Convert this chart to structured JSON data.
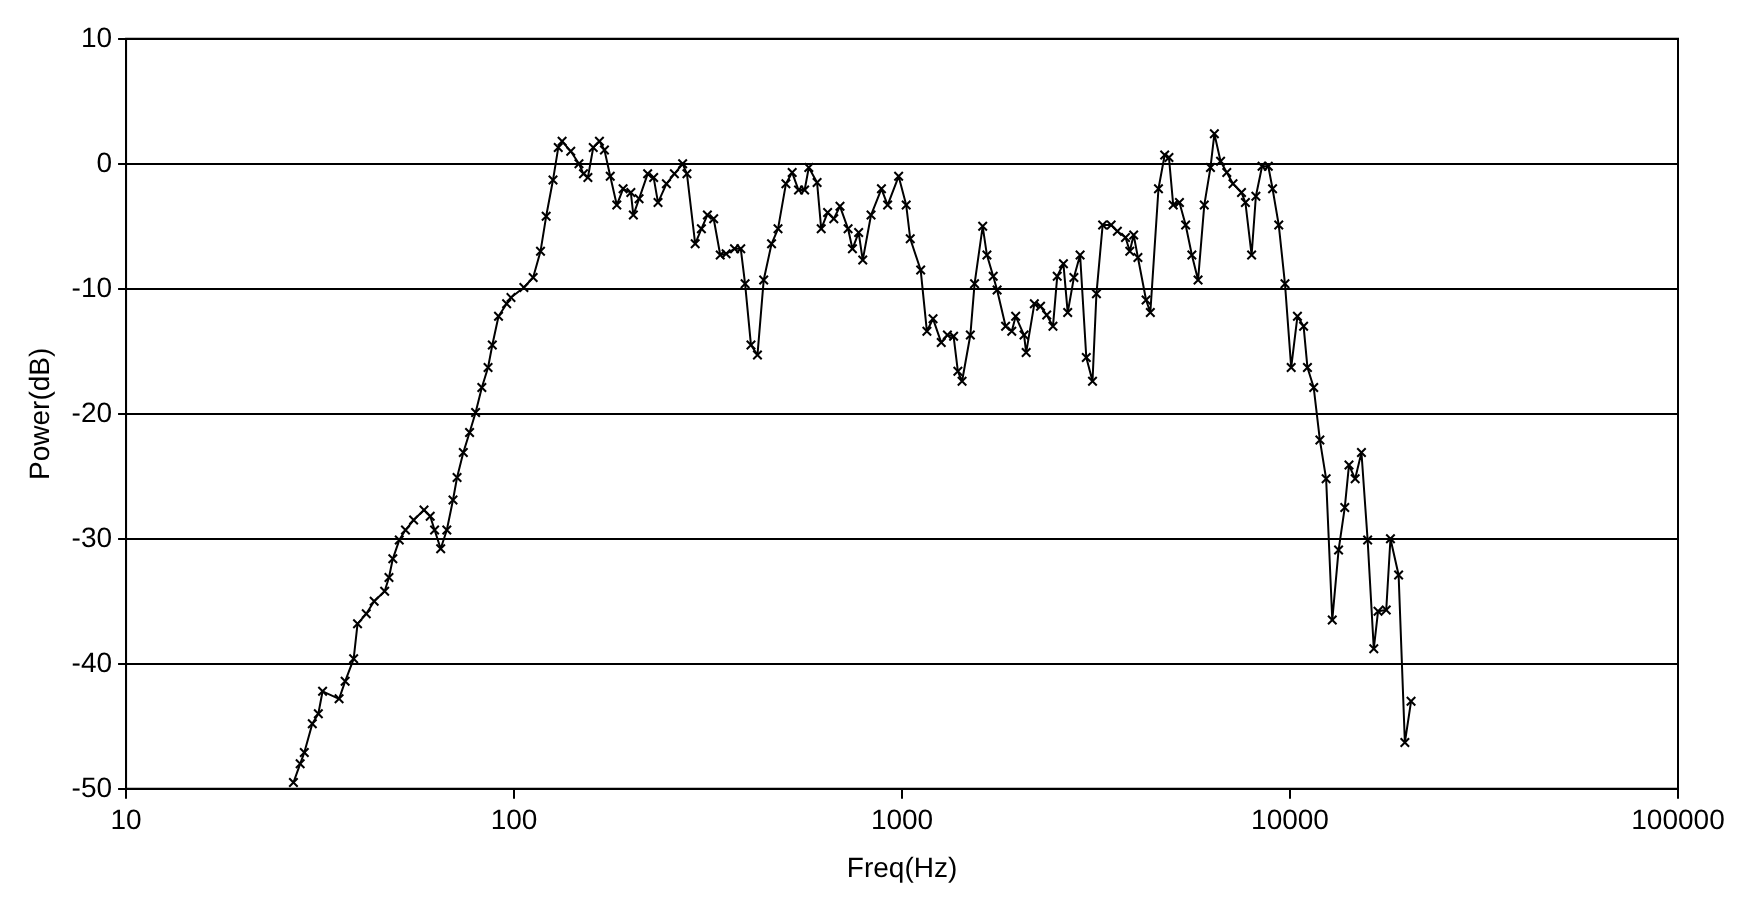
{
  "chart_data": {
    "type": "line",
    "xlabel": "Freq(Hz)",
    "ylabel": "Power(dB)",
    "log": "x",
    "xlim": [
      10,
      100000
    ],
    "xticks": [
      10,
      100,
      1000,
      10000,
      100000
    ],
    "ylim": [
      -50,
      10
    ],
    "yticks": [
      -50,
      -40,
      -30,
      -20,
      -10,
      0,
      10
    ],
    "grid": "y",
    "legend": false,
    "marker": "cross",
    "line_style": "solid",
    "series": [
      {
        "color": "#000000",
        "x": [
          27.0,
          28.1,
          28.8,
          30.2,
          31.3,
          32.1,
          35.4,
          36.7,
          38.6,
          39.5,
          41.6,
          43.6,
          46.4,
          47.6,
          48.7,
          50.6,
          52.5,
          55.1,
          58.6,
          60.8,
          62.4,
          64.7,
          67.1,
          69.6,
          71.3,
          74.0,
          76.8,
          79.6,
          82.6,
          85.7,
          87.9,
          91.2,
          95.7,
          98.2,
          106,
          112,
          117,
          121,
          126,
          130,
          133,
          140,
          147,
          151,
          155,
          160,
          166,
          171,
          177,
          184,
          191,
          200,
          203,
          210,
          221,
          229,
          235,
          247,
          259,
          272,
          279,
          293,
          304,
          315,
          327,
          340,
          352,
          370,
          384,
          394,
          408,
          424,
          440,
          461,
          479,
          502,
          521,
          541,
          561,
          575,
          604,
          619,
          643,
          667,
          692,
          726,
          745,
          773,
          792,
          832,
          885,
          918,
          980,
          1025,
          1050,
          1117,
          1159,
          1202,
          1262,
          1309,
          1358,
          1393,
          1428,
          1500,
          1538,
          1614,
          1655,
          1718,
          1758,
          1849,
          1918,
          1963,
          2063,
          2089,
          2193,
          2275,
          2360,
          2449,
          2512,
          2606,
          2673,
          2773,
          2877,
          2985,
          3097,
          3170,
          3289,
          3459,
          3589,
          3767,
          3864,
          3954,
          4055,
          4256,
          4365,
          4581,
          4753,
          4875,
          5000,
          5188,
          5383,
          5585,
          5794,
          6012,
          6237,
          6383,
          6622,
          6871,
          7129,
          7499,
          7674,
          7962,
          8166,
          8472,
          8790,
          9016,
          9354,
          9705,
          10070,
          10450,
          10840,
          11090,
          11510,
          11940,
          12390,
          12850,
          13340,
          13840,
          14190,
          14720,
          15280,
          15850,
          16440,
          16860,
          17700,
          18150,
          19050,
          19770,
          20510
        ],
        "values": [
          -49.5,
          -48.0,
          -47.1,
          -44.8,
          -44.0,
          -42.2,
          -42.8,
          -41.4,
          -39.6,
          -36.8,
          -36.0,
          -35.0,
          -34.2,
          -33.1,
          -31.6,
          -30.1,
          -29.3,
          -28.5,
          -27.7,
          -28.2,
          -29.3,
          -30.8,
          -29.3,
          -26.9,
          -25.1,
          -23.1,
          -21.5,
          -19.9,
          -17.9,
          -16.3,
          -14.5,
          -12.2,
          -11.2,
          -10.7,
          -9.9,
          -9.1,
          -7.0,
          -4.2,
          -1.3,
          1.3,
          1.8,
          1.0,
          0,
          -0.8,
          -1.1,
          1.3,
          1.8,
          1.1,
          -1.0,
          -3.3,
          -2.0,
          -2.3,
          -4.1,
          -2.8,
          -0.8,
          -1.1,
          -3.1,
          -1.6,
          -0.8,
          0,
          -0.8,
          -6.4,
          -5.2,
          -4.1,
          -4.4,
          -7.3,
          -7.2,
          -6.8,
          -6.8,
          -9.6,
          -14.5,
          -15.3,
          -9.3,
          -6.4,
          -5.2,
          -1.6,
          -0.7,
          -2.1,
          -2.1,
          -0.3,
          -1.5,
          -5.2,
          -3.9,
          -4.4,
          -3.4,
          -5.2,
          -6.8,
          -5.5,
          -7.7,
          -4.1,
          -2.0,
          -3.3,
          -1.0,
          -3.3,
          -6.0,
          -8.5,
          -13.4,
          -12.4,
          -14.3,
          -13.7,
          -13.8,
          -16.6,
          -17.4,
          -13.7,
          -9.6,
          -5.0,
          -7.3,
          -9.0,
          -10.1,
          -13.0,
          -13.4,
          -12.2,
          -13.7,
          -15.1,
          -11.2,
          -11.4,
          -12.1,
          -13.0,
          -9.0,
          -8.0,
          -11.9,
          -9.1,
          -7.3,
          -15.5,
          -17.4,
          -10.4,
          -4.9,
          -4.9,
          -5.4,
          -5.9,
          -7.0,
          -5.7,
          -7.5,
          -10.9,
          -11.9,
          -2.0,
          0.7,
          0.5,
          -3.3,
          -3.1,
          -4.9,
          -7.3,
          -9.3,
          -3.3,
          -0.3,
          2.4,
          0.2,
          -0.7,
          -1.6,
          -2.3,
          -3.1,
          -7.3,
          -2.6,
          -0.2,
          -0.2,
          -2.0,
          -4.9,
          -9.6,
          -16.3,
          -12.2,
          -13.0,
          -16.3,
          -17.9,
          -22.1,
          -25.2,
          -36.5,
          -30.9,
          -27.5,
          -24.1,
          -25.2,
          -23.1,
          -30.1,
          -38.8,
          -35.8,
          -35.7,
          -30.0,
          -32.9,
          -46.3,
          -43.0
        ]
      }
    ]
  }
}
